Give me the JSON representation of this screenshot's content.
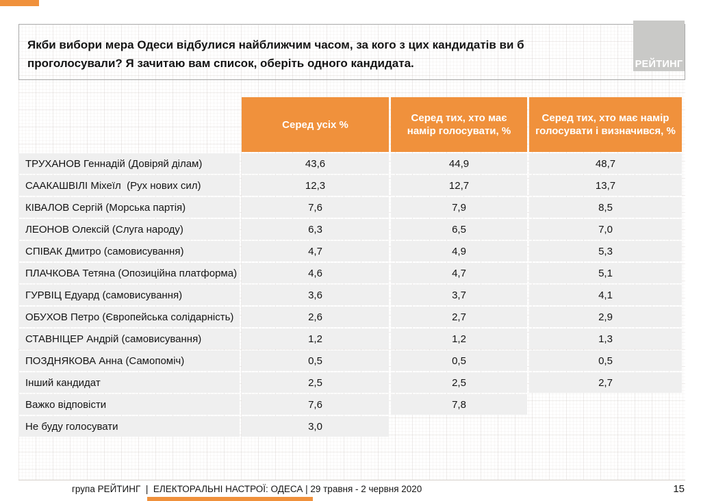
{
  "slide": {
    "question": "Якби вибори мера Одеси відбулися найближчим часом, за кого з цих кандидатів ви б проголосували? Я зачитаю вам список, оберіть одного кандидата.",
    "logo_text": "РЕЙТИНГ",
    "footer_text": "група РЕЙТИНГ  |  ЕЛЕКТОРАЛЬНІ НАСТРОЇ: ОДЕСА | 29 травня - 2 червня 2020",
    "page_number": "15"
  },
  "colors": {
    "accent_orange": "#F0913C",
    "row_gray": "#EFEFEF",
    "logo_gray": "#C9C9C7"
  },
  "chart_data": {
    "type": "table",
    "title": "Якби вибори мера Одеси відбулися найближчим часом, за кого з цих кандидатів ви б проголосували? Я зачитаю вам список, оберіть одного кандидата.",
    "columns": [
      "Серед усіх %",
      "Серед тих, хто має намір голосувати, %",
      "Серед тих, хто має намір голосувати і визначився, %"
    ],
    "rows": [
      {
        "name": "ТРУХАНОВ Геннадій (Довіряй ділам)",
        "values": [
          "43,6",
          "44,9",
          "48,7"
        ]
      },
      {
        "name": "СААКАШВІЛІ Міхеїл  (Рух нових сил)",
        "values": [
          "12,3",
          "12,7",
          "13,7"
        ]
      },
      {
        "name": "КІВАЛОВ Сергій (Морська партія)",
        "values": [
          "7,6",
          "7,9",
          "8,5"
        ]
      },
      {
        "name": "ЛЕОНОВ Олексій (Слуга народу)",
        "values": [
          "6,3",
          "6,5",
          "7,0"
        ]
      },
      {
        "name": "СПІВАК Дмитро (самовисування)",
        "values": [
          "4,7",
          "4,9",
          "5,3"
        ]
      },
      {
        "name": "ПЛАЧКОВА Тетяна (Опозиційна платформа)",
        "values": [
          "4,6",
          "4,7",
          "5,1"
        ]
      },
      {
        "name": "ГУРВІЦ Едуард (самовисування)",
        "values": [
          "3,6",
          "3,7",
          "4,1"
        ]
      },
      {
        "name": "ОБУХОВ Петро (Європейська солідарність)",
        "values": [
          "2,6",
          "2,7",
          "2,9"
        ]
      },
      {
        "name": "СТАВНІЦЕР Андрій (самовисування)",
        "values": [
          "1,2",
          "1,2",
          "1,3"
        ]
      },
      {
        "name": "ПОЗДНЯКОВА Анна (Самопоміч)",
        "values": [
          "0,5",
          "0,5",
          "0,5"
        ]
      },
      {
        "name": "Інший кандидат",
        "values": [
          "2,5",
          "2,5",
          "2,7"
        ]
      },
      {
        "name": "Важко відповісти",
        "values": [
          "7,6",
          "7,8",
          null
        ]
      },
      {
        "name": "Не буду голосувати",
        "values": [
          "3,0",
          null,
          null
        ]
      }
    ]
  }
}
